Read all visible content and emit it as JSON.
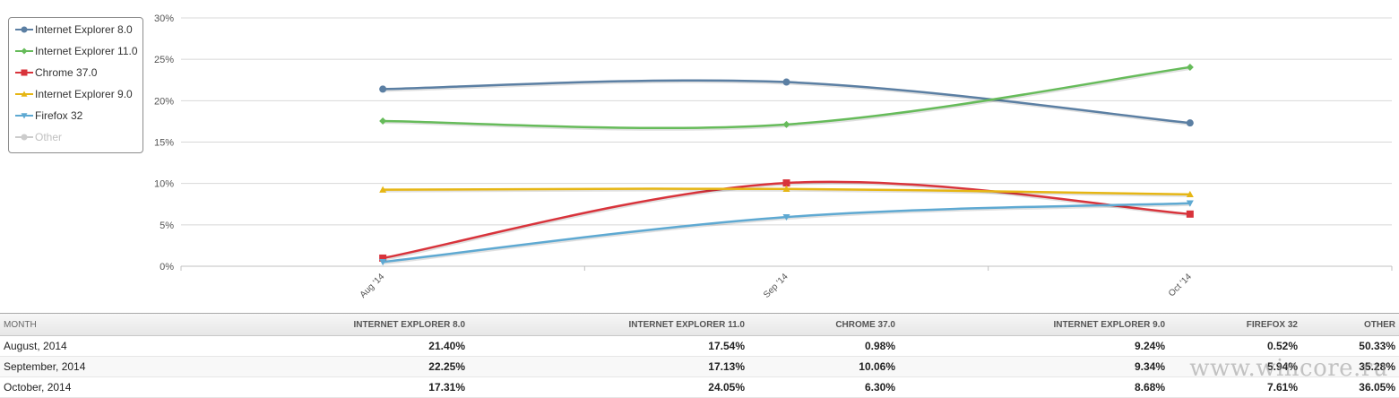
{
  "chart_data": {
    "type": "line",
    "title": "",
    "xlabel": "",
    "ylabel": "",
    "ylim": [
      0,
      30
    ],
    "yticks": [
      "0%",
      "5%",
      "10%",
      "15%",
      "20%",
      "25%",
      "30%"
    ],
    "categories": [
      "Aug '14",
      "Sep '14",
      "Oct '14"
    ],
    "grid": true,
    "legend_placement": "top-left",
    "series": [
      {
        "name": "Internet Explorer 8.0",
        "color": "#5b7fa3",
        "marker": "circle",
        "values": [
          21.4,
          22.25,
          17.31
        ],
        "visible": true
      },
      {
        "name": "Internet Explorer 11.0",
        "color": "#66bb5a",
        "marker": "diamond",
        "values": [
          17.54,
          17.13,
          24.05
        ],
        "visible": true
      },
      {
        "name": "Chrome 37.0",
        "color": "#d8333b",
        "marker": "square",
        "values": [
          0.98,
          10.06,
          6.3
        ],
        "visible": true
      },
      {
        "name": "Internet Explorer 9.0",
        "color": "#e6b614",
        "marker": "triangle",
        "values": [
          9.24,
          9.34,
          8.68
        ],
        "visible": true
      },
      {
        "name": "Firefox 32",
        "color": "#5ea9d2",
        "marker": "triangle-down",
        "values": [
          0.52,
          5.94,
          7.61
        ],
        "visible": true
      },
      {
        "name": "Other",
        "color": "#c8c8c8",
        "marker": "circle",
        "values": [
          50.33,
          35.28,
          36.05
        ],
        "visible": false
      }
    ]
  },
  "table": {
    "headers": [
      "MONTH",
      "INTERNET EXPLORER 8.0",
      "INTERNET EXPLORER 11.0",
      "CHROME 37.0",
      "INTERNET EXPLORER 9.0",
      "FIREFOX 32",
      "OTHER"
    ],
    "rows": [
      [
        "August, 2014",
        "21.40%",
        "17.54%",
        "0.98%",
        "9.24%",
        "0.52%",
        "50.33%"
      ],
      [
        "September, 2014",
        "22.25%",
        "17.13%",
        "10.06%",
        "9.34%",
        "5.94%",
        "35.28%"
      ],
      [
        "October, 2014",
        "17.31%",
        "24.05%",
        "6.30%",
        "8.68%",
        "7.61%",
        "36.05%"
      ]
    ]
  },
  "watermark": "www.wincore.ru"
}
